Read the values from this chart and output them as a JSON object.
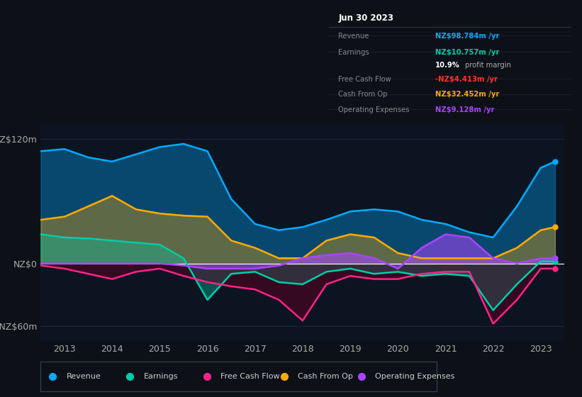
{
  "bg_color": "#0d1117",
  "plot_bg_color": "#0d1421",
  "revenue_color": "#00aaff",
  "earnings_color": "#00ccaa",
  "free_cash_color": "#ff2288",
  "cash_from_op_color": "#ffaa00",
  "op_expenses_color": "#aa44ff",
  "legend_items": [
    {
      "label": "Revenue",
      "color": "#00aaff"
    },
    {
      "label": "Earnings",
      "color": "#00ccaa"
    },
    {
      "label": "Free Cash Flow",
      "color": "#ff2288"
    },
    {
      "label": "Cash From Op",
      "color": "#ffaa00"
    },
    {
      "label": "Operating Expenses",
      "color": "#aa44ff"
    }
  ]
}
